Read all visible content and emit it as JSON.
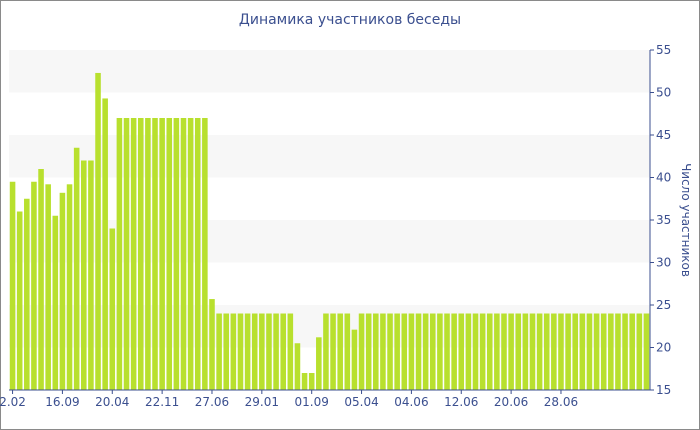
{
  "chart_data": {
    "type": "bar",
    "title": "Динамика участников беседы",
    "xlabel": "",
    "ylabel": "Число участников",
    "ylim": [
      15,
      55
    ],
    "yticks": [
      15,
      20,
      25,
      30,
      35,
      40,
      45,
      50,
      55
    ],
    "y_axis_position": "right",
    "grid": "horizontal bands",
    "bar_color": "#b8e02e",
    "band_color": "#f7f7f7",
    "axis_color": "#3b4f8f",
    "xtick_labels": [
      {
        "label": "2.02",
        "index": 0
      },
      {
        "label": "16.09",
        "index": 7
      },
      {
        "label": "20.04",
        "index": 14
      },
      {
        "label": "22.11",
        "index": 21
      },
      {
        "label": "27.06",
        "index": 28
      },
      {
        "label": "29.01",
        "index": 35
      },
      {
        "label": "01.09",
        "index": 42
      },
      {
        "label": "05.04",
        "index": 49
      },
      {
        "label": "04.06",
        "index": 56
      },
      {
        "label": "12.06",
        "index": 63
      },
      {
        "label": "20.06",
        "index": 70
      },
      {
        "label": "28.06",
        "index": 77
      }
    ],
    "values": [
      39.5,
      36,
      37.5,
      39.5,
      41,
      39.2,
      35.5,
      38.2,
      39.2,
      43.5,
      42,
      42,
      52.3,
      49.3,
      34,
      47,
      47,
      47,
      47,
      47,
      47,
      47,
      47,
      47,
      47,
      47,
      47,
      47,
      25.7,
      24,
      24,
      24,
      24,
      24,
      24,
      24,
      24,
      24,
      24,
      24,
      20.5,
      17,
      17,
      21.2,
      24,
      24,
      24,
      24,
      22.1,
      24,
      24,
      24,
      24,
      24,
      24,
      24,
      24,
      24,
      24,
      24,
      24,
      24,
      24,
      24,
      24,
      24,
      24,
      24,
      24,
      24,
      24,
      24,
      24,
      24,
      24,
      24,
      24,
      24,
      24,
      24,
      24,
      24,
      24,
      24,
      24,
      24,
      24,
      24,
      24,
      24
    ]
  }
}
